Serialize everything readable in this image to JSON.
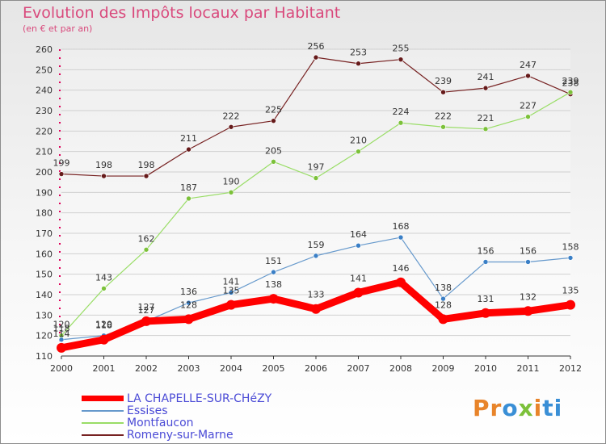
{
  "title": "Evolution des Impôts locaux par Habitant",
  "subtitle": "(en € et par an)",
  "logo": "Proxiti",
  "chart_data": {
    "type": "line",
    "title": "Evolution des Impôts locaux par Habitant",
    "ylabel": "(en € et par an)",
    "xlabel": "",
    "ylim": [
      110,
      260
    ],
    "yticks": [
      "110",
      "120",
      "130",
      "140",
      "150",
      "160",
      "170",
      "180",
      "190",
      "200",
      "210",
      "220",
      "230",
      "240",
      "250",
      "260"
    ],
    "x": [
      "2000",
      "2001",
      "2002",
      "2003",
      "2004",
      "2005",
      "2006",
      "2007",
      "2008",
      "2009",
      "2010",
      "2011",
      "2012"
    ],
    "series": [
      {
        "name": "LA CHAPELLE-SUR-CHéZY",
        "color": "#ff0000",
        "values": [
          114,
          118,
          127,
          128,
          135,
          138,
          133,
          141,
          146,
          128,
          131,
          132,
          135
        ],
        "labels": [
          "114",
          "118",
          "127",
          "128",
          "135",
          "138",
          "133",
          "141",
          "146",
          "128",
          "131",
          "132",
          "135"
        ]
      },
      {
        "name": "Essises",
        "color": "#6699cc",
        "values": [
          118,
          120,
          127,
          136,
          141,
          151,
          159,
          164,
          168,
          138,
          156,
          156,
          158
        ],
        "labels": [
          "118",
          "120",
          "127",
          "136",
          "141",
          "151",
          "159",
          "164",
          "168",
          "138",
          "156",
          "156",
          "158"
        ]
      },
      {
        "name": "Montfaucon",
        "color": "#99dd66",
        "values": [
          120,
          143,
          162,
          187,
          190,
          205,
          197,
          210,
          224,
          222,
          221,
          227,
          239
        ],
        "labels": [
          "120",
          "143",
          "162",
          "187",
          "190",
          "205",
          "197",
          "210",
          "224",
          "222",
          "221",
          "227",
          "239"
        ]
      },
      {
        "name": "Romeny-sur-Marne",
        "color": "#772222",
        "values": [
          199,
          198,
          198,
          211,
          222,
          225,
          256,
          253,
          255,
          239,
          241,
          247,
          238
        ],
        "labels": [
          "199",
          "198",
          "198",
          "211",
          "222",
          "225",
          "256",
          "253",
          "255",
          "239",
          "241",
          "247",
          "238"
        ]
      }
    ]
  }
}
